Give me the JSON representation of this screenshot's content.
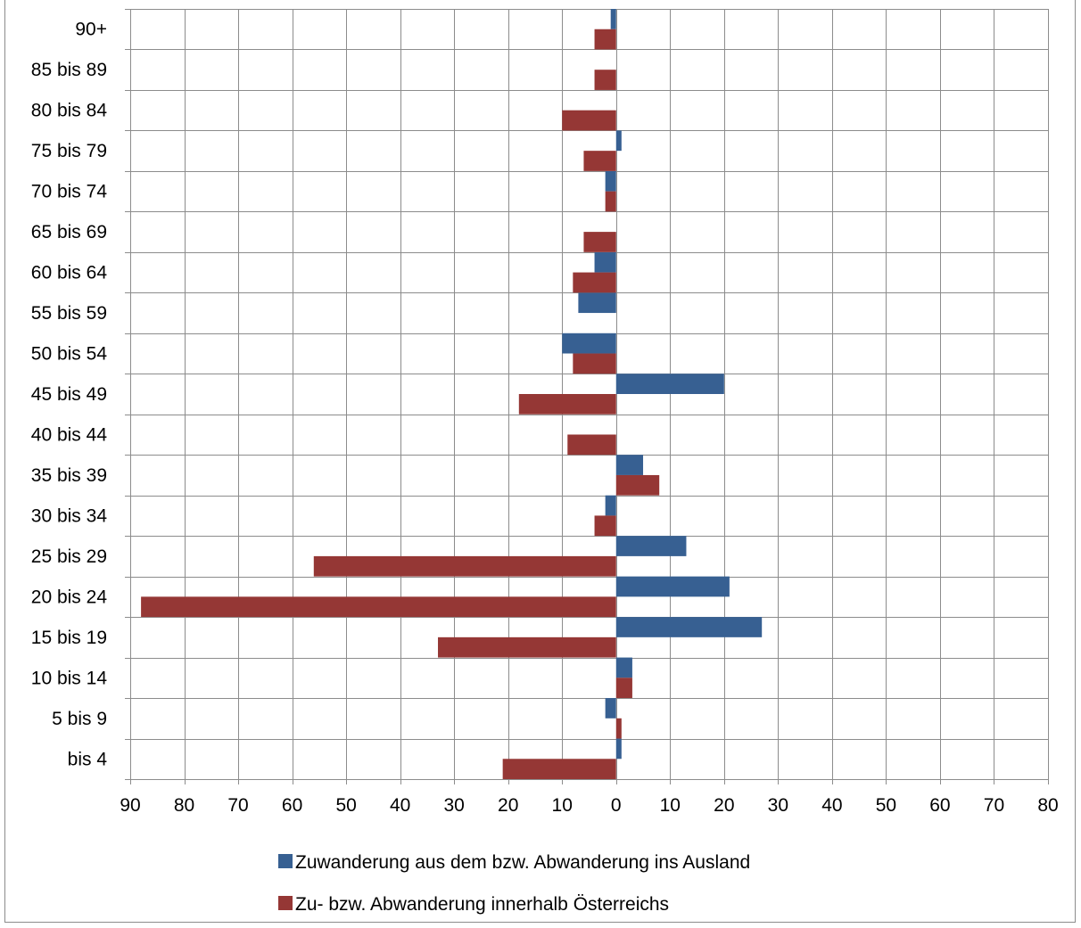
{
  "chart_data": {
    "type": "bar",
    "orientation": "horizontal",
    "categories": [
      "bis 4",
      "5 bis 9",
      "10 bis 14",
      "15 bis 19",
      "20 bis 24",
      "25 bis 29",
      "30 bis 34",
      "35 bis 39",
      "40 bis 44",
      "45 bis 49",
      "50 bis 54",
      "55 bis 59",
      "60 bis 64",
      "65 bis 69",
      "70 bis 74",
      "75 bis 79",
      "80 bis 84",
      "85 bis 89",
      "90+"
    ],
    "series": [
      {
        "name": "Zuwanderung aus dem bzw. Abwanderung ins Ausland",
        "color": "#376092",
        "values": [
          1,
          -2,
          3,
          27,
          21,
          13,
          -2,
          5,
          0,
          20,
          -10,
          -7,
          -4,
          0,
          -2,
          1,
          0,
          0,
          -1
        ]
      },
      {
        "name": "Zu- bzw. Abwanderung innerhalb Österreichs",
        "color": "#953735",
        "values": [
          -21,
          1,
          3,
          -33,
          -88,
          -56,
          -4,
          8,
          -9,
          -18,
          -8,
          0,
          -8,
          -6,
          -2,
          -6,
          -10,
          -4,
          -4
        ]
      }
    ],
    "xlim": [
      -90,
      80
    ],
    "xticks": [
      -90,
      -80,
      -70,
      -60,
      -50,
      -40,
      -30,
      -20,
      -10,
      0,
      10,
      20,
      30,
      40,
      50,
      60,
      70,
      80
    ],
    "xtick_labels": [
      "90",
      "80",
      "70",
      "60",
      "50",
      "40",
      "30",
      "20",
      "10",
      "0",
      "10",
      "20",
      "30",
      "40",
      "50",
      "60",
      "70",
      "80"
    ],
    "grid": true,
    "legend_position": "bottom"
  }
}
